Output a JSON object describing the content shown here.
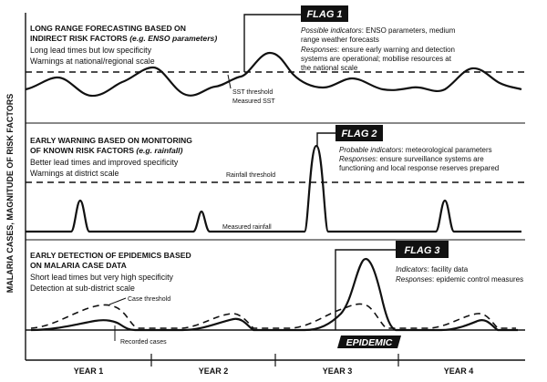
{
  "y_axis_label": "MALARIA CASES, MAGNITUDE OF RISK FACTORS",
  "years": [
    "YEAR 1",
    "YEAR 2",
    "YEAR 3",
    "YEAR 4"
  ],
  "panel1": {
    "heading_line1": "LONG RANGE FORECASTING BASED ON",
    "heading_line2a": "INDIRECT RISK FACTORS ",
    "heading_line2b": "(e.g. ENSO parameters)",
    "text_line1": "Long lead times but low specificity",
    "text_line2": "Warnings at national/regional scale",
    "threshold_label": "SST threshold",
    "measure_label": "Measured SST",
    "flag": "FLAG 1",
    "indicators_label": "Possible indicators",
    "indicators_text1": ": ENSO parameters, medium",
    "indicators_text2": "range weather forecasts",
    "responses_label": "Responses",
    "responses_text1": ": ensure early warning and detection",
    "responses_text2": "systems are operational; mobilise resources at",
    "responses_text3": "the national scale"
  },
  "panel2": {
    "heading_line1": "EARLY WARNING BASED ON MONITORING",
    "heading_line2a": "OF KNOWN RISK FACTORS ",
    "heading_line2b": "(e.g. rainfall)",
    "text_line1": "Better lead times and improved specificity",
    "text_line2": "Warnings at district scale",
    "threshold_label": "Rainfall threshold",
    "measure_label": "Measured rainfall",
    "flag": "FLAG 2",
    "indicators_label": "Probable indicators",
    "indicators_text1": ": meteorological parameters",
    "responses_label": "Responses",
    "responses_text1": ": ensure surveillance systems are",
    "responses_text2": "functioning and local response reserves prepared"
  },
  "panel3": {
    "heading_line1": "EARLY DETECTION OF EPIDEMICS BASED",
    "heading_line2": "ON MALARIA CASE DATA",
    "text_line1": "Short lead times but very high specificity",
    "text_line2": "Detection at sub-district scale",
    "threshold_label": "Case threshold",
    "measure_label": "Recorded cases",
    "flag": "FLAG 3",
    "indicators_label": "Indicators",
    "indicators_text1": ": facility data",
    "responses_label": "Responses",
    "responses_text1": ": epidemic control measures",
    "epidemic_label": "EPIDEMIC"
  }
}
